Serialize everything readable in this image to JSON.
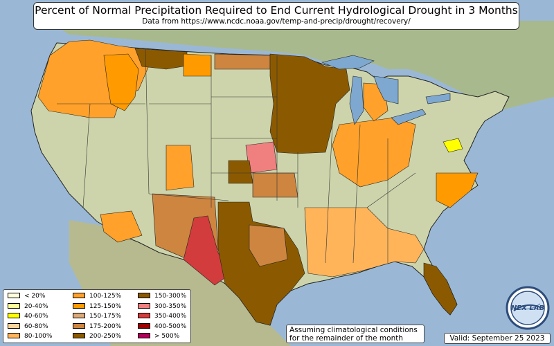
{
  "title": "Percent of Normal Precipitation Required to End Current Hydrological Drought in 3 Months",
  "subtitle": "Data from https://www.ncdc.noaa.gov/temp-and-precip/drought/recovery/",
  "colors": {
    "ocean": "#9ab8d6",
    "land": "#c9d3a9",
    "land_north": "#d9d7bd",
    "neighbor_land": "#a9b98e",
    "lakes": "#7ea8cf",
    "border": "#1a1a1a"
  },
  "legend": [
    {
      "label": "< 20%",
      "color": "#ffffe0"
    },
    {
      "label": "20-40%",
      "color": "#ffff9a"
    },
    {
      "label": "40-60%",
      "color": "#ffff00"
    },
    {
      "label": "60-80%",
      "color": "#ffd39b"
    },
    {
      "label": "80-100%",
      "color": "#ffb45a"
    },
    {
      "label": "100-125%",
      "color": "#ffa12a"
    },
    {
      "label": "125-150%",
      "color": "#ff9a00"
    },
    {
      "label": "150-175%",
      "color": "#dcaa78"
    },
    {
      "label": "175-200%",
      "color": "#cd853f"
    },
    {
      "label": "200-250%",
      "color": "#8b5a00"
    },
    {
      "label": "150-300%",
      "color": "#8b5a00"
    },
    {
      "label": "300-350%",
      "color": "#f08080"
    },
    {
      "label": "350-400%",
      "color": "#d23c3c"
    },
    {
      "label": "400-500%",
      "color": "#9c0000"
    },
    {
      "label": "> 500%",
      "color": "#b0005a"
    }
  ],
  "note": {
    "line1": "Assuming climatological conditions",
    "line2": "for the remainder of the month"
  },
  "valid": "Valid: September 25 2023",
  "logo_text": "NEX LAB"
}
